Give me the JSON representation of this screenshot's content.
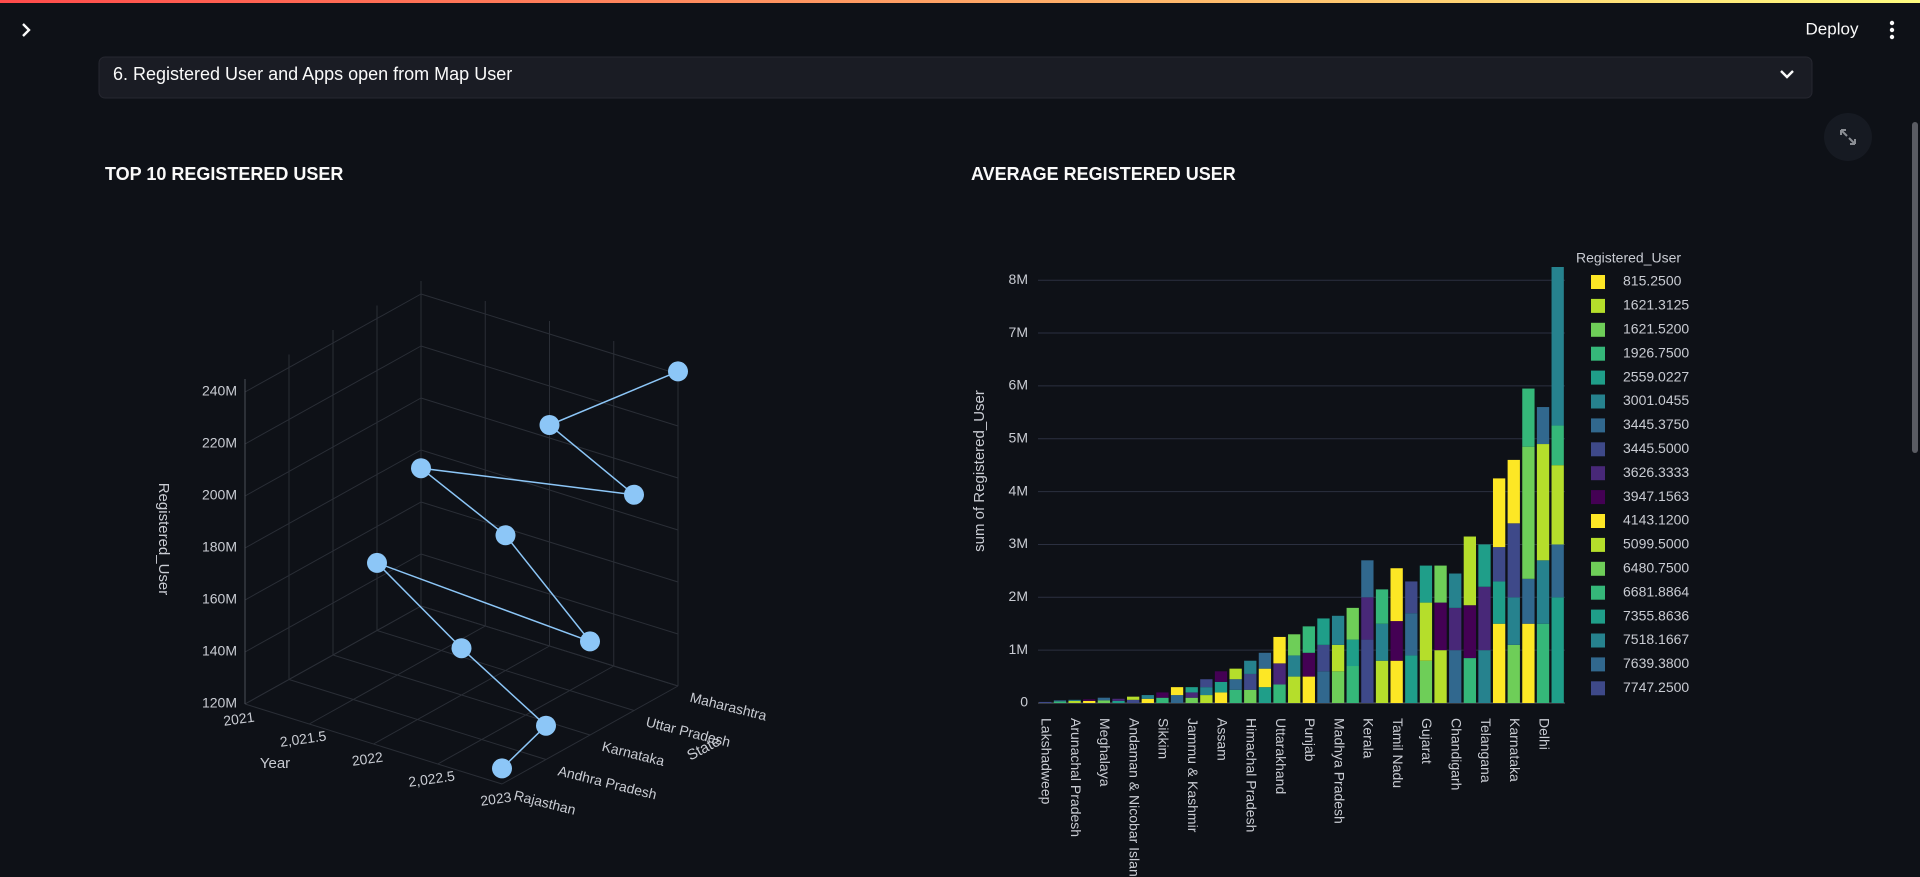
{
  "header": {
    "deploy": "Deploy"
  },
  "expander": {
    "title": "6. Registered User and Apps open from Map User"
  },
  "chart_data": [
    {
      "type": "scatter3d",
      "title": "TOP 10 REGISTERED USER",
      "xlabel": "Year",
      "ylabel": "State",
      "zlabel": "Registered_User",
      "y_categories": [
        "Rajasthan",
        "Andhra Pradesh",
        "Karnataka",
        "Uttar Pradesh",
        "Maharashtra"
      ],
      "x": [
        2023,
        2022,
        2023,
        2021,
        2022,
        2023,
        2021,
        2022,
        2023,
        2023
      ],
      "y": [
        "Maharashtra",
        "Maharashtra",
        "Uttar Pradesh",
        "Maharashtra",
        "Uttar Pradesh",
        "Karnataka",
        "Uttar Pradesh",
        "Karnataka",
        "Andhra Pradesh",
        "Rajasthan"
      ],
      "z": [
        241000000,
        205000000,
        203000000,
        173000000,
        172000000,
        156000000,
        146000000,
        138000000,
        133000000,
        126000000
      ],
      "color": "#8cc6f7",
      "xlim": [
        2021,
        2023
      ],
      "xticks": [
        2021,
        {
          "value": 2021.5,
          "label": "2,021.5"
        },
        2022,
        {
          "value": 2022.5,
          "label": "2,022.5"
        },
        2023
      ],
      "zlim": [
        120000000,
        245000000
      ],
      "zticks": [
        {
          "value": 120000000,
          "label": "120M"
        },
        {
          "value": 140000000,
          "label": "140M"
        },
        {
          "value": 160000000,
          "label": "160M"
        },
        {
          "value": 180000000,
          "label": "180M"
        },
        {
          "value": 200000000,
          "label": "200M"
        },
        {
          "value": 220000000,
          "label": "220M"
        },
        {
          "value": 240000000,
          "label": "240M"
        }
      ],
      "grid": true
    },
    {
      "type": "stacked_bar",
      "title": "AVERAGE REGISTERED USER",
      "ylabel": "sum of Registered_User",
      "legend_title": "Registered_User",
      "legend": "right",
      "categories": [
        "Lakshadweep",
        null,
        "Arunachal Pradesh",
        null,
        "Meghalaya",
        null,
        "Andaman & Nicobar Islands",
        null,
        "Sikkim",
        null,
        "Jammu & Kashmir",
        null,
        "Assam",
        null,
        "Himachal Pradesh",
        null,
        "Uttarakhand",
        null,
        "Punjab",
        null,
        "Madhya Pradesh",
        null,
        "Kerala",
        null,
        "Tamil Nadu",
        null,
        "Gujarat",
        null,
        "Chandigarh",
        null,
        "Telangana",
        null,
        "Karnataka",
        null,
        "Delhi",
        null
      ],
      "ylim": [
        0,
        8250000
      ],
      "yticks": [
        0,
        {
          "value": 1000000,
          "label": "1M"
        },
        {
          "value": 2000000,
          "label": "2M"
        },
        {
          "value": 3000000,
          "label": "3M"
        },
        {
          "value": 4000000,
          "label": "4M"
        },
        {
          "value": 5000000,
          "label": "5M"
        },
        {
          "value": 6000000,
          "label": "6M"
        },
        {
          "value": 7000000,
          "label": "7M"
        },
        {
          "value": 8000000,
          "label": "8M"
        }
      ],
      "grid": true,
      "series": [
        {
          "name": "815.2500",
          "color": "#fde725",
          "values": [
            null,
            null,
            null,
            40000,
            null,
            null,
            null,
            80000,
            null,
            null,
            null,
            null,
            200000,
            null,
            null,
            null,
            null,
            null,
            500000,
            null,
            null,
            null,
            null,
            null,
            800000,
            null,
            null,
            null,
            null,
            null,
            null,
            1500000,
            null,
            1500000,
            null,
            null
          ]
        },
        {
          "name": "1621.3125",
          "color": "#b5de2b",
          "values": [
            null,
            null,
            40000,
            null,
            null,
            null,
            null,
            null,
            null,
            null,
            null,
            150000,
            null,
            null,
            null,
            null,
            null,
            500000,
            null,
            null,
            null,
            null,
            null,
            800000,
            null,
            null,
            null,
            1000000,
            null,
            null,
            null,
            null,
            null,
            null,
            null,
            null
          ]
        },
        {
          "name": "1621.5200",
          "color": "#6ece58",
          "values": [
            null,
            null,
            null,
            null,
            50000,
            null,
            null,
            null,
            null,
            null,
            100000,
            null,
            null,
            null,
            250000,
            null,
            null,
            null,
            null,
            null,
            600000,
            null,
            null,
            null,
            null,
            null,
            800000,
            null,
            null,
            null,
            null,
            null,
            1100000,
            null,
            null,
            null
          ]
        },
        {
          "name": "1926.7500",
          "color": "#35b779",
          "values": [
            null,
            30000,
            null,
            null,
            null,
            null,
            null,
            null,
            100000,
            null,
            null,
            null,
            null,
            250000,
            null,
            null,
            350000,
            null,
            null,
            null,
            null,
            700000,
            null,
            null,
            null,
            null,
            null,
            null,
            null,
            850000,
            null,
            null,
            null,
            null,
            1500000,
            null
          ]
        },
        {
          "name": "2559.0227",
          "color": "#1f9e89",
          "values": [
            null,
            null,
            null,
            null,
            null,
            40000,
            null,
            null,
            null,
            null,
            null,
            null,
            200000,
            null,
            null,
            300000,
            null,
            null,
            null,
            null,
            null,
            500000,
            null,
            null,
            null,
            900000,
            null,
            null,
            null,
            null,
            null,
            800000,
            null,
            null,
            null,
            2000000
          ]
        },
        {
          "name": "3001.0455",
          "color": "#26828e",
          "values": [
            null,
            null,
            20000,
            null,
            null,
            null,
            null,
            70000,
            null,
            null,
            null,
            150000,
            null,
            null,
            null,
            null,
            null,
            400000,
            null,
            null,
            null,
            null,
            null,
            700000,
            null,
            null,
            null,
            null,
            null,
            null,
            1000000,
            null,
            900000,
            null,
            1200000,
            null
          ]
        },
        {
          "name": "3445.3750",
          "color": "#31688e",
          "values": [
            null,
            20000,
            null,
            null,
            50000,
            null,
            null,
            null,
            null,
            150000,
            null,
            null,
            null,
            200000,
            null,
            null,
            null,
            null,
            null,
            600000,
            null,
            null,
            null,
            null,
            null,
            800000,
            null,
            null,
            1000000,
            null,
            null,
            null,
            null,
            850000,
            null,
            1000000
          ]
        },
        {
          "name": "3445.5000",
          "color": "#3e4989",
          "values": [
            20000,
            null,
            null,
            null,
            null,
            null,
            60000,
            null,
            null,
            null,
            null,
            150000,
            null,
            null,
            300000,
            null,
            null,
            null,
            null,
            500000,
            null,
            null,
            1200000,
            null,
            null,
            null,
            null,
            null,
            null,
            null,
            null,
            650000,
            1400000,
            null,
            null,
            null
          ]
        },
        {
          "name": "3626.3333",
          "color": "#482878",
          "values": [
            null,
            null,
            null,
            null,
            null,
            40000,
            null,
            null,
            null,
            null,
            100000,
            null,
            null,
            null,
            null,
            null,
            400000,
            null,
            null,
            null,
            null,
            null,
            800000,
            null,
            null,
            null,
            null,
            null,
            800000,
            null,
            1200000,
            null,
            null,
            null,
            null,
            null
          ]
        },
        {
          "name": "3947.1563",
          "color": "#440154",
          "values": [
            null,
            null,
            null,
            30000,
            null,
            null,
            null,
            null,
            100000,
            null,
            null,
            null,
            200000,
            null,
            null,
            null,
            null,
            null,
            450000,
            null,
            null,
            null,
            null,
            null,
            750000,
            null,
            null,
            900000,
            null,
            1000000,
            null,
            null,
            null,
            null,
            null,
            null
          ]
        },
        {
          "name": "4143.1200",
          "color": "#fde725",
          "values": [
            null,
            null,
            null,
            null,
            null,
            null,
            null,
            null,
            null,
            150000,
            null,
            null,
            null,
            null,
            null,
            350000,
            500000,
            null,
            null,
            null,
            null,
            null,
            null,
            null,
            1000000,
            null,
            null,
            null,
            null,
            null,
            null,
            1300000,
            1200000,
            null,
            null,
            null
          ]
        },
        {
          "name": "5099.5000",
          "color": "#b5de2b",
          "values": [
            null,
            null,
            null,
            null,
            null,
            null,
            60000,
            null,
            null,
            null,
            null,
            null,
            null,
            200000,
            null,
            null,
            null,
            null,
            null,
            null,
            500000,
            null,
            null,
            null,
            null,
            null,
            1100000,
            null,
            null,
            1300000,
            null,
            null,
            null,
            null,
            2200000,
            1500000
          ]
        },
        {
          "name": "6480.7500",
          "color": "#6ece58",
          "values": [
            null,
            null,
            null,
            null,
            null,
            null,
            null,
            null,
            null,
            null,
            null,
            null,
            null,
            null,
            null,
            null,
            null,
            400000,
            null,
            null,
            null,
            600000,
            null,
            null,
            null,
            null,
            null,
            700000,
            null,
            null,
            null,
            null,
            null,
            2500000,
            null,
            null
          ]
        },
        {
          "name": "6681.8864",
          "color": "#35b779",
          "values": [
            null,
            null,
            null,
            null,
            null,
            null,
            null,
            null,
            null,
            null,
            null,
            null,
            null,
            null,
            null,
            null,
            null,
            null,
            500000,
            null,
            null,
            null,
            null,
            650000,
            null,
            null,
            null,
            null,
            null,
            null,
            null,
            null,
            null,
            1100000,
            null,
            750000
          ]
        },
        {
          "name": "7355.8636",
          "color": "#1f9e89",
          "values": [
            null,
            null,
            null,
            null,
            null,
            null,
            null,
            null,
            null,
            null,
            100000,
            null,
            null,
            null,
            null,
            null,
            null,
            null,
            null,
            500000,
            null,
            null,
            null,
            null,
            null,
            null,
            700000,
            null,
            null,
            null,
            800000,
            null,
            null,
            null,
            null,
            null
          ]
        },
        {
          "name": "7518.1667",
          "color": "#26828e",
          "values": [
            null,
            null,
            null,
            null,
            null,
            null,
            null,
            null,
            null,
            null,
            null,
            null,
            null,
            null,
            250000,
            null,
            null,
            null,
            null,
            null,
            550000,
            null,
            null,
            null,
            null,
            null,
            null,
            null,
            650000,
            null,
            null,
            null,
            null,
            null,
            null,
            3000000
          ]
        },
        {
          "name": "7639.3800",
          "color": "#31688e",
          "values": [
            null,
            null,
            null,
            null,
            null,
            null,
            null,
            null,
            null,
            null,
            null,
            null,
            null,
            null,
            null,
            300000,
            null,
            null,
            null,
            null,
            null,
            null,
            700000,
            null,
            null,
            null,
            null,
            null,
            null,
            null,
            null,
            null,
            null,
            null,
            700000,
            null
          ]
        },
        {
          "name": "7747.2500",
          "color": "#3e4989",
          "values": [
            null,
            null,
            null,
            null,
            null,
            null,
            null,
            null,
            null,
            null,
            null,
            null,
            null,
            null,
            null,
            null,
            null,
            null,
            null,
            null,
            null,
            null,
            null,
            null,
            null,
            600000,
            null,
            null,
            null,
            null,
            null,
            null,
            null,
            null,
            null,
            null
          ]
        }
      ]
    }
  ]
}
